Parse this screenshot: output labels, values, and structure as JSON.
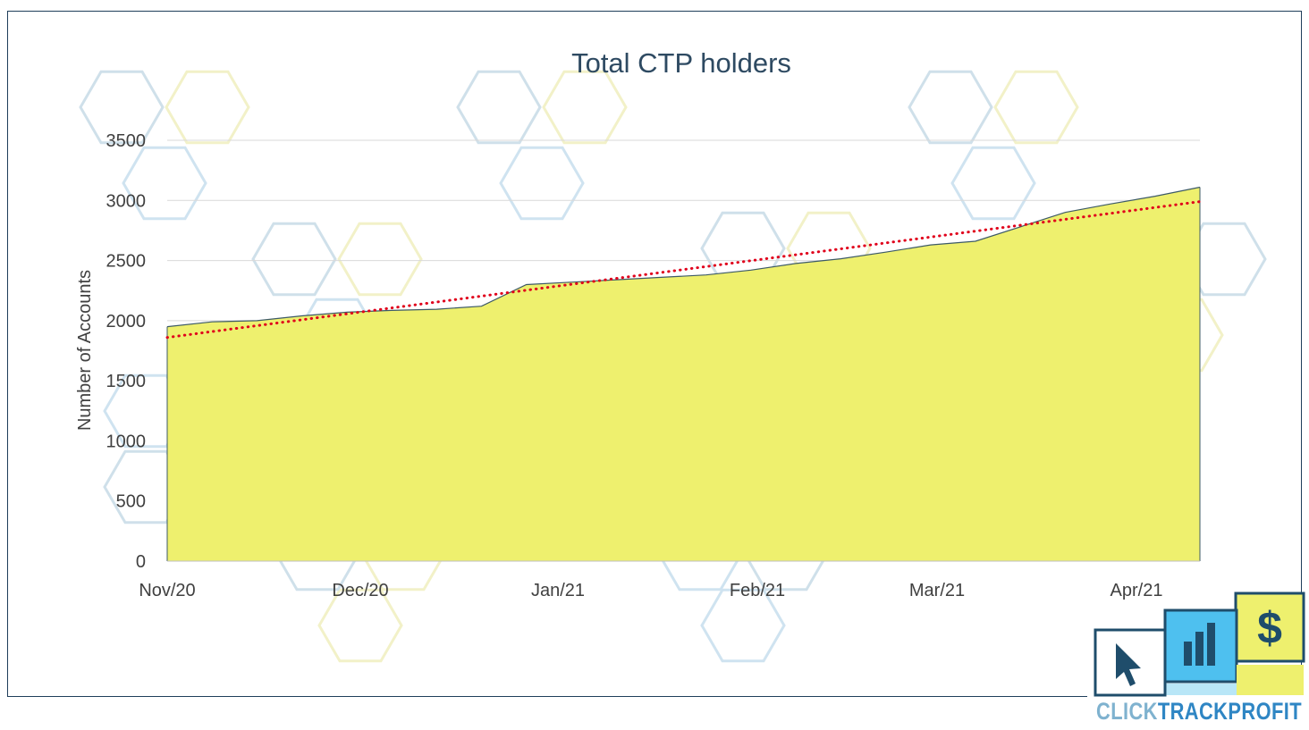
{
  "chart_data": {
    "type": "area",
    "title": "Total CTP holders",
    "ylabel": "Number of Accounts",
    "xlabel": "",
    "ylim": [
      0,
      3500
    ],
    "y_ticks": [
      "0",
      "500",
      "1000",
      "1500",
      "2000",
      "2500",
      "3000",
      "3500"
    ],
    "x_tick_labels": [
      "Nov/20",
      "Dec/20",
      "Jan/21",
      "Feb/21",
      "Mar/21",
      "Apr/21"
    ],
    "grid": true,
    "legend": "none",
    "series": [
      {
        "values": [
          1950,
          1990,
          2000,
          2040,
          2070,
          2085,
          2095,
          2120,
          2300,
          2320,
          2340,
          2360,
          2380,
          2420,
          2475,
          2515,
          2570,
          2630,
          2660,
          2780,
          2900,
          2970,
          3035,
          3110
        ],
        "fill_color": "#eef06e",
        "line_color": "#3d5a66"
      }
    ],
    "trendline": {
      "type": "linear",
      "start": 1860,
      "end": 2990,
      "color": "#e0001b",
      "style": "dotted"
    }
  },
  "logo": {
    "word_click": "CLICK",
    "word_track": "TRACK",
    "word_profit": "PROFIT",
    "icons": [
      "cursor-icon",
      "bar-chart-icon",
      "dollar-icon"
    ],
    "dollar_symbol": "$",
    "colors": {
      "click": "#7fb2cf",
      "track": "#2f86c4",
      "profit": "#2f86c4",
      "yellow": "#eef06e",
      "blue": "#4ec0ef",
      "navy": "#1f4d6b"
    }
  }
}
